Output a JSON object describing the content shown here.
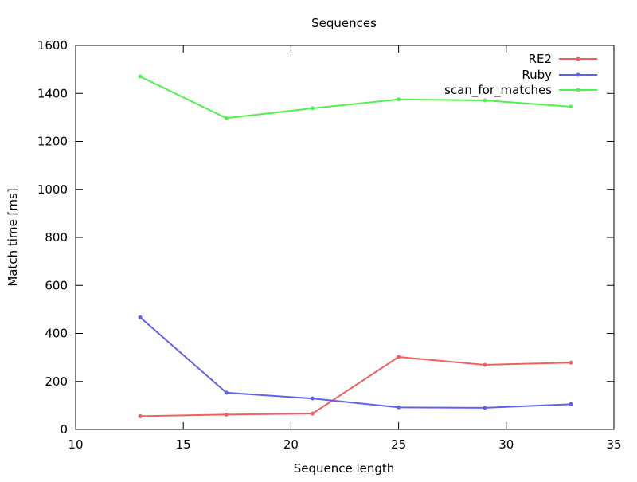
{
  "chart_data": {
    "type": "line",
    "title": "Sequences",
    "xlabel": "Sequence length",
    "ylabel": "Match time [ms]",
    "xlim": [
      10,
      35
    ],
    "ylim": [
      0,
      1600
    ],
    "xticks": [
      10,
      15,
      20,
      25,
      30,
      35
    ],
    "yticks": [
      0,
      200,
      400,
      600,
      800,
      1000,
      1200,
      1400,
      1600
    ],
    "grid": false,
    "legend_position": "top-right",
    "x": [
      13,
      17,
      21,
      25,
      29,
      33
    ],
    "series": [
      {
        "name": "RE2",
        "color": "#f06060",
        "values": [
          55,
          62,
          66,
          302,
          269,
          278
        ]
      },
      {
        "name": "Ruby",
        "color": "#6060f0",
        "values": [
          467,
          153,
          129,
          92,
          90,
          105
        ]
      },
      {
        "name": "scan_for_matches",
        "color": "#50f050",
        "values": [
          1470,
          1297,
          1338,
          1375,
          1371,
          1345
        ]
      }
    ]
  }
}
